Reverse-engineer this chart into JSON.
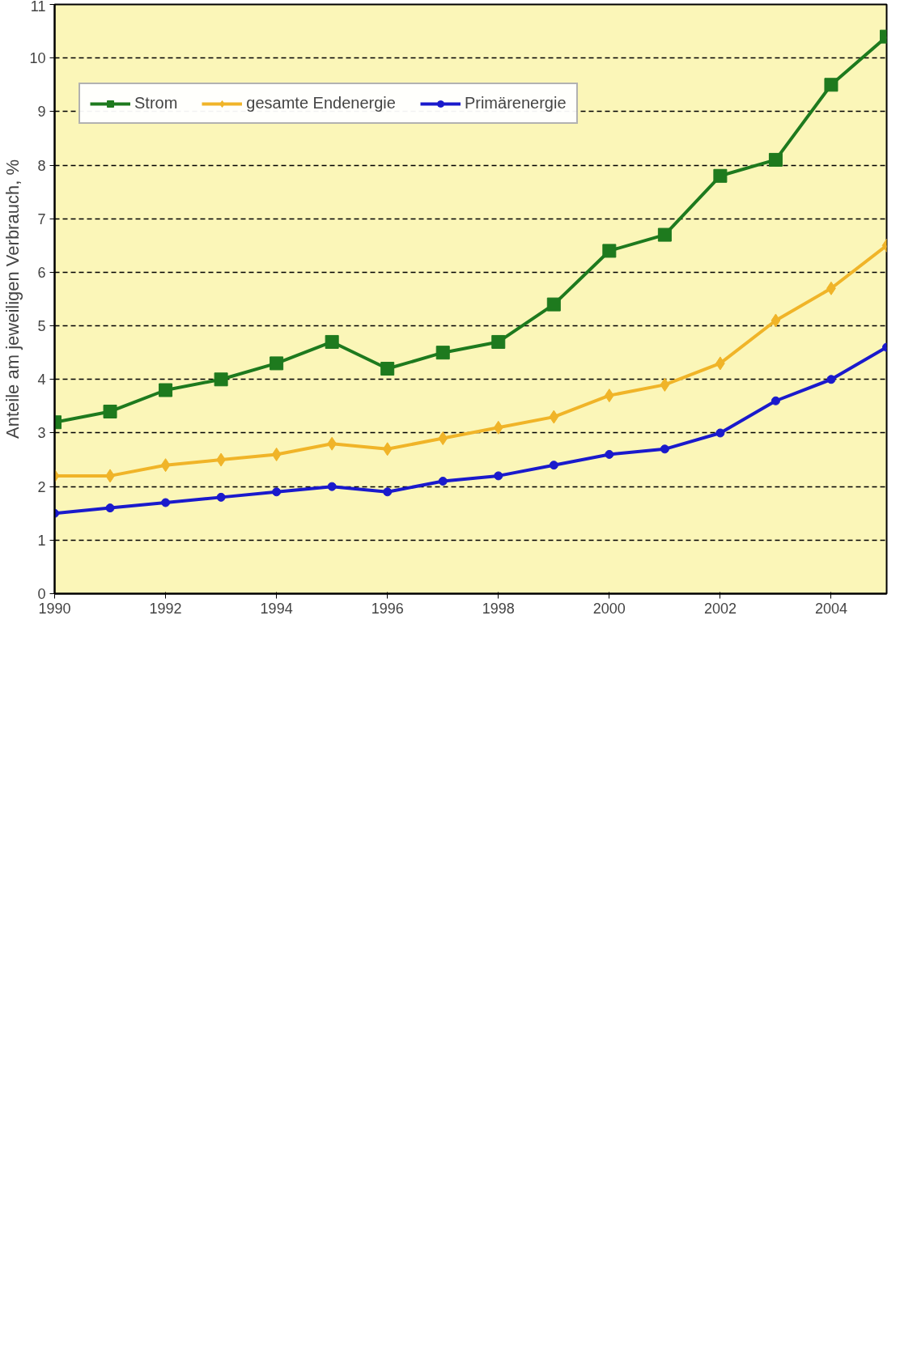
{
  "chart_data": {
    "type": "line",
    "ylabel": "Anteile am jeweiligen Verbrauch, %",
    "x": [
      1990,
      1991,
      1992,
      1993,
      1994,
      1995,
      1996,
      1997,
      1998,
      1999,
      2000,
      2001,
      2002,
      2003,
      2004,
      2005
    ],
    "series": [
      {
        "name": "Strom",
        "color": "#1e7a1e",
        "marker": "square",
        "values": [
          3.2,
          3.4,
          3.8,
          4.0,
          4.3,
          4.7,
          4.2,
          4.5,
          4.7,
          5.4,
          6.4,
          6.7,
          7.8,
          8.1,
          9.5,
          10.4
        ]
      },
      {
        "name": "gesamte Endenergie",
        "color": "#f0b428",
        "marker": "diamond",
        "values": [
          2.2,
          2.2,
          2.4,
          2.5,
          2.6,
          2.8,
          2.7,
          2.9,
          3.1,
          3.3,
          3.7,
          3.9,
          4.3,
          5.1,
          5.7,
          6.5
        ]
      },
      {
        "name": "Primärenergie",
        "color": "#1a1acc",
        "marker": "circle",
        "values": [
          1.5,
          1.6,
          1.7,
          1.8,
          1.9,
          2.0,
          1.9,
          2.1,
          2.2,
          2.4,
          2.6,
          2.7,
          3.0,
          3.6,
          4.0,
          4.6
        ]
      }
    ],
    "xlim": [
      1990,
      2005
    ],
    "xticks": [
      1990,
      1992,
      1994,
      1996,
      1998,
      2000,
      2002,
      2004
    ],
    "ylim": [
      0,
      11
    ],
    "yticks": [
      0,
      1,
      2,
      3,
      4,
      5,
      6,
      7,
      8,
      9,
      10,
      11
    ],
    "grid": "y",
    "line_style": "solid",
    "legend": "top"
  }
}
